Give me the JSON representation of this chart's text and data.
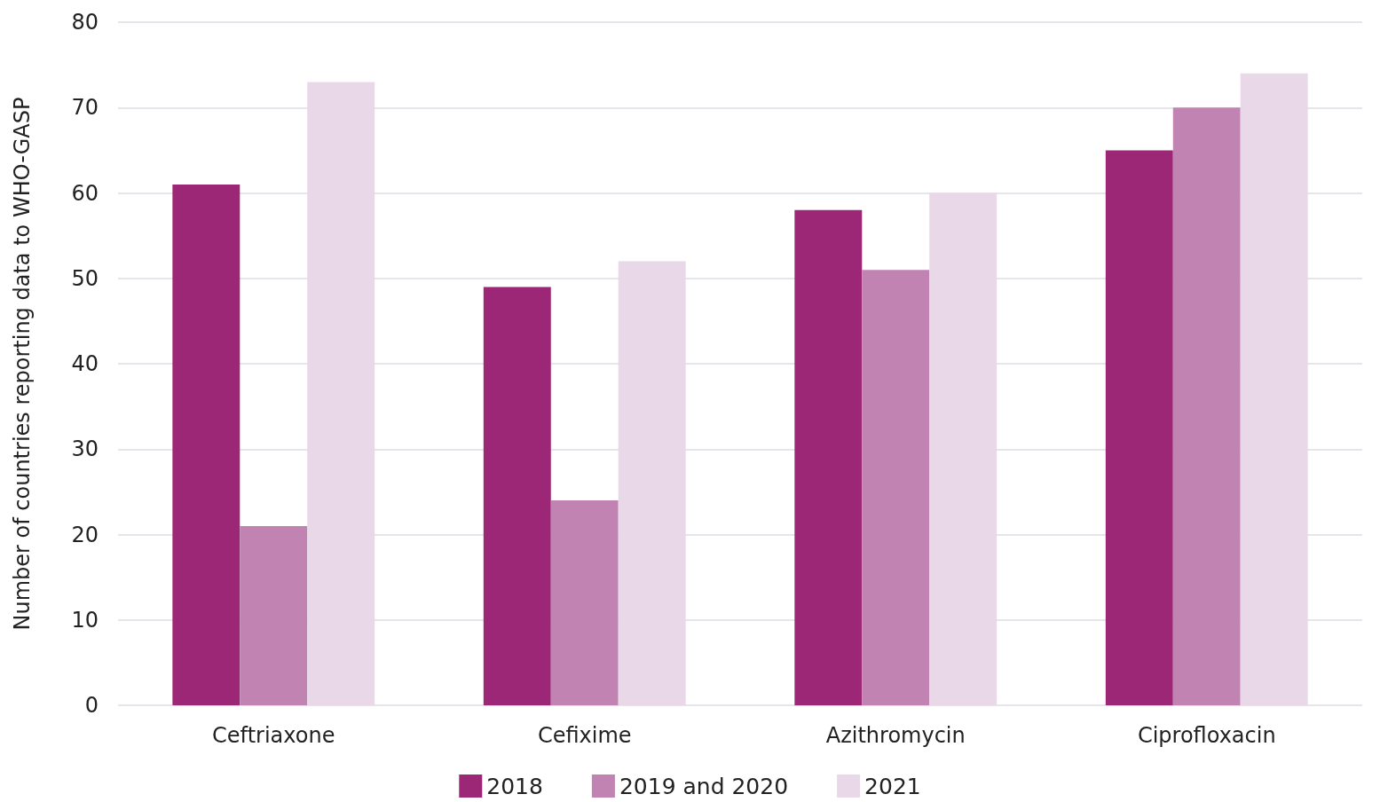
{
  "chart_data": {
    "type": "bar",
    "ylabel": "Number of countries reporting data to WHO-GASP",
    "categories": [
      "Ceftriaxone",
      "Cefixime",
      "Azithromycin",
      "Ciprofloxacin"
    ],
    "series": [
      {
        "name": "2018",
        "color": "#9c2777",
        "values": [
          61,
          49,
          58,
          65
        ]
      },
      {
        "name": "2019 and 2020",
        "color": "#c083b2",
        "values": [
          21,
          24,
          51,
          70
        ]
      },
      {
        "name": "2021",
        "color": "#e8d8e8",
        "values": [
          73,
          52,
          60,
          74
        ]
      }
    ],
    "ylim": [
      0,
      80
    ],
    "yticks": [
      0,
      10,
      20,
      30,
      40,
      50,
      60,
      70,
      80
    ],
    "grid": "y",
    "legend": "bottom"
  }
}
